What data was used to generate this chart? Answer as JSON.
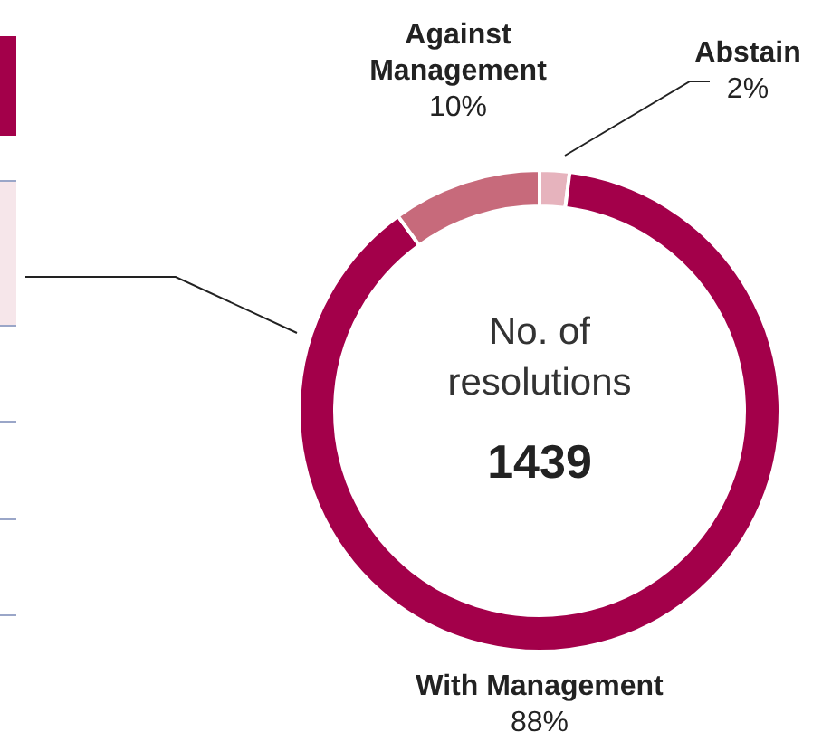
{
  "chart_data": {
    "type": "donut",
    "categories": [
      "Abstain",
      "With Management",
      "Against Management"
    ],
    "values": [
      2,
      88,
      10
    ],
    "colors": [
      "#e6b3bd",
      "#a3004a",
      "#c76a7b"
    ],
    "value_labels": [
      "2%",
      "88%",
      "10%"
    ],
    "annotations": [
      "No. of resolutions",
      "1439"
    ],
    "legend": false
  }
}
